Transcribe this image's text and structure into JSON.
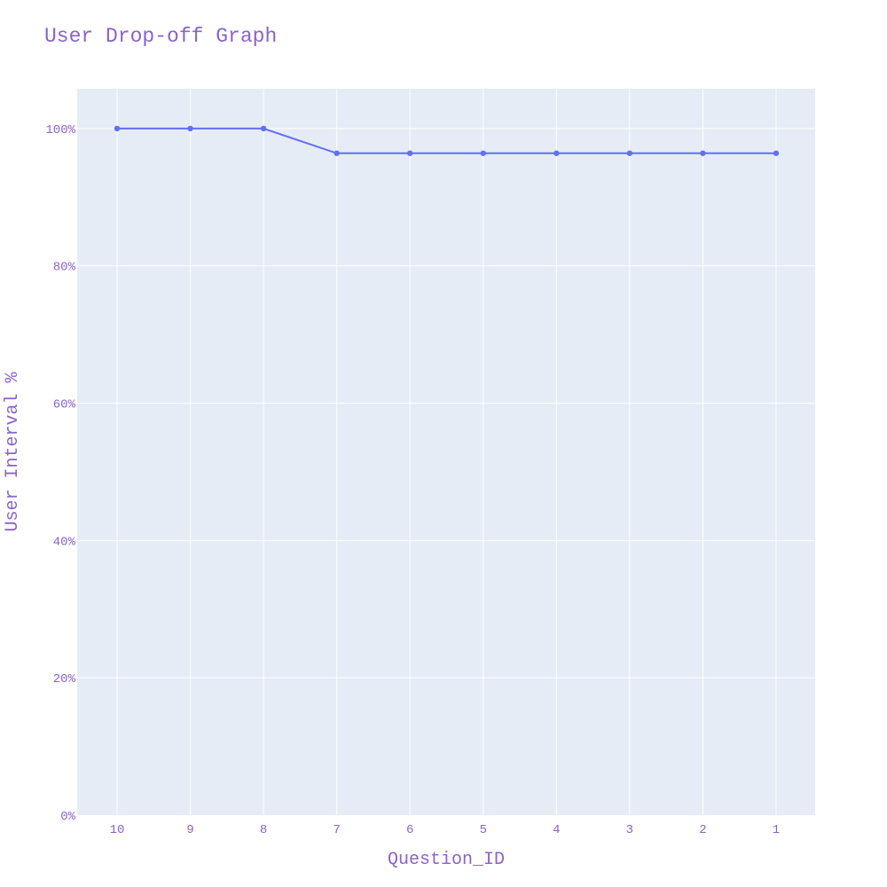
{
  "chart_data": {
    "type": "line",
    "title": "User Drop-off Graph",
    "xlabel": "Question_ID",
    "ylabel": "User Interval %",
    "categories": [
      "10",
      "9",
      "8",
      "7",
      "6",
      "5",
      "4",
      "3",
      "2",
      "1"
    ],
    "series": [
      {
        "values": [
          100,
          100,
          100,
          96.4,
          96.4,
          96.4,
          96.4,
          96.4,
          96.4,
          96.4
        ]
      }
    ],
    "ylim": [
      0,
      105.8
    ],
    "yticks": [
      0,
      20,
      40,
      60,
      80,
      100
    ],
    "ytick_labels": [
      "0%",
      "20%",
      "40%",
      "60%",
      "80%",
      "100%"
    ],
    "grid": true,
    "colors": {
      "plot_background": "#e5ecf6",
      "grid": "#ffffff",
      "line": "#636efa",
      "text": "#8a63c9"
    }
  }
}
